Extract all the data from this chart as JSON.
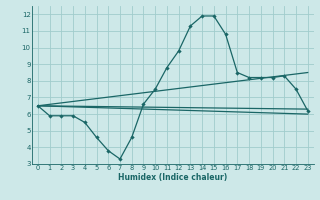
{
  "xlabel": "Humidex (Indice chaleur)",
  "xlim": [
    -0.5,
    23.5
  ],
  "ylim": [
    3,
    12.5
  ],
  "yticks": [
    3,
    4,
    5,
    6,
    7,
    8,
    9,
    10,
    11,
    12
  ],
  "xticks": [
    0,
    1,
    2,
    3,
    4,
    5,
    6,
    7,
    8,
    9,
    10,
    11,
    12,
    13,
    14,
    15,
    16,
    17,
    18,
    19,
    20,
    21,
    22,
    23
  ],
  "bg_color": "#cde8e8",
  "grid_color": "#a0cccc",
  "line_color": "#1a6666",
  "main_line": {
    "x": [
      0,
      1,
      2,
      3,
      4,
      5,
      6,
      7,
      8,
      9,
      10,
      11,
      12,
      13,
      14,
      15,
      16,
      17,
      18,
      19,
      20,
      21,
      22,
      23
    ],
    "y": [
      6.5,
      5.9,
      5.9,
      5.9,
      5.5,
      4.6,
      3.8,
      3.3,
      4.6,
      6.6,
      7.5,
      8.8,
      9.8,
      11.3,
      11.9,
      11.9,
      10.8,
      8.5,
      8.2,
      8.2,
      8.2,
      8.3,
      7.5,
      6.2
    ]
  },
  "straight_lines": [
    {
      "x": [
        0,
        23
      ],
      "y": [
        6.5,
        6.0
      ]
    },
    {
      "x": [
        0,
        23
      ],
      "y": [
        6.5,
        6.3
      ]
    },
    {
      "x": [
        0,
        23
      ],
      "y": [
        6.5,
        8.5
      ]
    }
  ]
}
